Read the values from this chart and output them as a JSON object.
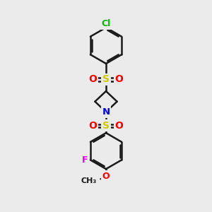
{
  "background_color": "#ebebeb",
  "bond_color": "#1a1a1a",
  "bond_width": 1.8,
  "atom_colors": {
    "Cl": "#00bb00",
    "S": "#cccc00",
    "O": "#ff0000",
    "N": "#0000ee",
    "F": "#ee00ee",
    "C": "#1a1a1a"
  },
  "figsize": [
    3.0,
    3.0
  ],
  "dpi": 100
}
